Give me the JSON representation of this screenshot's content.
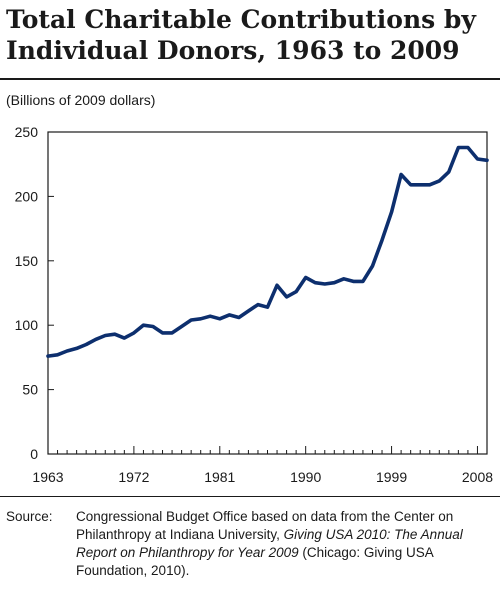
{
  "title_line1": "Total Charitable Contributions by",
  "title_line2": "Individual Donors, 1963 to 2009",
  "units": "(Billions of 2009 dollars)",
  "source": {
    "label": "Source:",
    "text_before": "Congressional Budget Office based on data from the Center on Philanthropy at Indiana University, ",
    "text_italic": "Giving USA 2010: The Annual Report on Philanthropy for Year 2009",
    "text_after": " (Chicago: Giving USA Foundation, 2010)."
  },
  "chart_data": {
    "type": "line",
    "title": "Total Charitable Contributions by Individual Donors, 1963 to 2009",
    "ylabel": "(Billions of 2009 dollars)",
    "xlabel": "",
    "xlim": [
      1963,
      2009
    ],
    "ylim": [
      0,
      250
    ],
    "x_ticks": [
      1963,
      1972,
      1981,
      1990,
      1999,
      2008
    ],
    "y_ticks": [
      0,
      50,
      100,
      150,
      200,
      250
    ],
    "grid": false,
    "line_color": "#0d2f6e",
    "series": [
      {
        "x": [
          1963,
          1964,
          1965,
          1966,
          1967,
          1968,
          1969,
          1970,
          1971,
          1972,
          1973,
          1974,
          1975,
          1976,
          1977,
          1978,
          1979,
          1980,
          1981,
          1982,
          1983,
          1984,
          1985,
          1986,
          1987,
          1988,
          1989,
          1990,
          1991,
          1992,
          1993,
          1994,
          1995,
          1996,
          1997,
          1998,
          1999,
          2000,
          2001,
          2002,
          2003,
          2004,
          2005,
          2006,
          2007,
          2008,
          2009
        ],
        "values": [
          76,
          77,
          80,
          82,
          85,
          89,
          92,
          93,
          90,
          94,
          100,
          99,
          94,
          94,
          99,
          104,
          105,
          107,
          105,
          108,
          106,
          111,
          116,
          114,
          131,
          122,
          126,
          137,
          133,
          132,
          133,
          136,
          134,
          134,
          146,
          166,
          188,
          217,
          209,
          209,
          209,
          212,
          219,
          238,
          238,
          229,
          228
        ]
      }
    ]
  }
}
